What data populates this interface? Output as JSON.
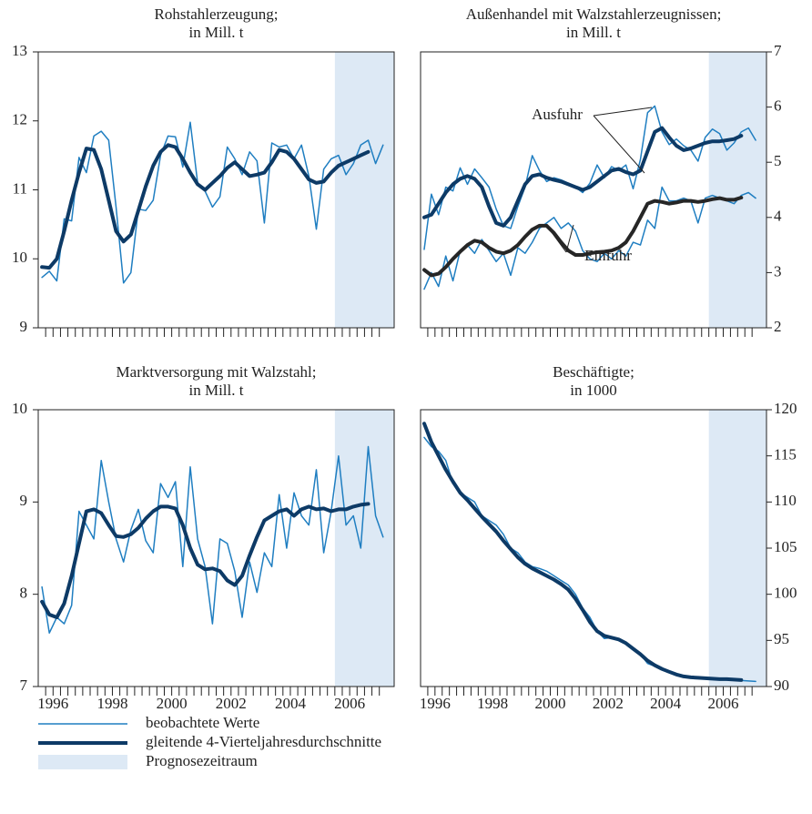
{
  "chart_data": [
    {
      "type": "line",
      "title": "Rohstahlerzeugung;",
      "subtitle": "in Mill. t",
      "xlim": [
        1995.5,
        2007.5
      ],
      "ylim": [
        9,
        13
      ],
      "yticks": [
        9,
        10,
        11,
        12,
        13
      ],
      "yaxis_side": "left",
      "forecast": [
        2005.5,
        2007.5
      ],
      "forecast_color": "#dde9f5",
      "x": [
        1995.625,
        1995.875,
        1996.125,
        1996.375,
        1996.625,
        1996.875,
        1997.125,
        1997.375,
        1997.625,
        1997.875,
        1998.125,
        1998.375,
        1998.625,
        1998.875,
        1999.125,
        1999.375,
        1999.625,
        1999.875,
        2000.125,
        2000.375,
        2000.625,
        2000.875,
        2001.125,
        2001.375,
        2001.625,
        2001.875,
        2002.125,
        2002.375,
        2002.625,
        2002.875,
        2003.125,
        2003.375,
        2003.625,
        2003.875,
        2004.125,
        2004.375,
        2004.625,
        2004.875,
        2005.125,
        2005.375,
        2005.625,
        2005.875,
        2006.125,
        2006.375,
        2006.625,
        2006.875,
        2007.125
      ],
      "series": [
        {
          "color": "#1f7ec1",
          "width": 1.5,
          "values": [
            9.73,
            9.82,
            9.68,
            10.58,
            10.55,
            11.47,
            11.25,
            11.78,
            11.85,
            11.72,
            10.75,
            9.65,
            9.8,
            10.72,
            10.7,
            10.85,
            11.5,
            11.78,
            11.77,
            11.33,
            11.98,
            11.1,
            10.98,
            10.75,
            10.9,
            11.62,
            11.45,
            11.22,
            11.55,
            11.42,
            10.52,
            11.68,
            11.62,
            11.65,
            11.45,
            11.65,
            11.2,
            10.43,
            11.3,
            11.45,
            11.5,
            11.22,
            11.38,
            11.65,
            11.72,
            11.38,
            11.65
          ]
        },
        {
          "color": "#0d3a66",
          "width": 4,
          "values": [
            9.88,
            9.87,
            10.0,
            10.4,
            10.85,
            11.25,
            11.6,
            11.58,
            11.3,
            10.85,
            10.4,
            10.25,
            10.35,
            10.7,
            11.05,
            11.35,
            11.55,
            11.65,
            11.62,
            11.45,
            11.25,
            11.08,
            11.0,
            11.1,
            11.2,
            11.32,
            11.4,
            11.3,
            11.2,
            11.22,
            11.25,
            11.4,
            11.58,
            11.55,
            11.45,
            11.3,
            11.15,
            11.1,
            11.12,
            11.25,
            11.35,
            11.4,
            11.45,
            11.5,
            11.55,
            null,
            null
          ]
        }
      ]
    },
    {
      "type": "line",
      "title": "Außenhandel mit Walzstahlerzeugnissen;",
      "subtitle": "in Mill. t",
      "xlim": [
        1995.5,
        2007.5
      ],
      "ylim": [
        2,
        7
      ],
      "yticks": [
        2,
        3,
        4,
        5,
        6,
        7
      ],
      "yaxis_side": "right",
      "forecast": [
        2005.5,
        2007.5
      ],
      "forecast_color": "#dde9f5",
      "annotations": [
        "Ausfuhr",
        "Einfuhr"
      ],
      "x": [
        1995.625,
        1995.875,
        1996.125,
        1996.375,
        1996.625,
        1996.875,
        1997.125,
        1997.375,
        1997.625,
        1997.875,
        1998.125,
        1998.375,
        1998.625,
        1998.875,
        1999.125,
        1999.375,
        1999.625,
        1999.875,
        2000.125,
        2000.375,
        2000.625,
        2000.875,
        2001.125,
        2001.375,
        2001.625,
        2001.875,
        2002.125,
        2002.375,
        2002.625,
        2002.875,
        2003.125,
        2003.375,
        2003.625,
        2003.875,
        2004.125,
        2004.375,
        2004.625,
        2004.875,
        2005.125,
        2005.375,
        2005.625,
        2005.875,
        2006.125,
        2006.375,
        2006.625,
        2006.875,
        2007.125
      ],
      "series": [
        {
          "color": "#1f7ec1",
          "width": 1.5,
          "values": [
            3.42,
            4.42,
            4.05,
            4.55,
            4.48,
            4.9,
            4.6,
            4.88,
            4.72,
            4.55,
            4.15,
            3.85,
            3.8,
            4.2,
            4.55,
            5.12,
            4.85,
            4.65,
            4.72,
            4.68,
            4.62,
            4.55,
            4.45,
            4.62,
            4.95,
            4.72,
            4.92,
            4.85,
            4.95,
            4.52,
            5.05,
            5.9,
            6.02,
            5.55,
            5.32,
            5.42,
            5.3,
            5.22,
            5.02,
            5.45,
            5.6,
            5.52,
            5.22,
            5.35,
            5.55,
            5.62,
            5.4
          ]
        },
        {
          "color": "#0d3a66",
          "width": 4,
          "values": [
            4.0,
            4.05,
            4.25,
            4.45,
            4.6,
            4.7,
            4.75,
            4.7,
            4.55,
            4.2,
            3.9,
            3.85,
            4.0,
            4.3,
            4.6,
            4.75,
            4.78,
            4.72,
            4.68,
            4.65,
            4.6,
            4.55,
            4.5,
            4.55,
            4.65,
            4.75,
            4.85,
            4.88,
            4.82,
            4.78,
            4.85,
            5.2,
            5.55,
            5.62,
            5.45,
            5.3,
            5.22,
            5.25,
            5.3,
            5.35,
            5.38,
            5.38,
            5.4,
            5.42,
            5.48,
            null,
            null
          ]
        },
        {
          "color": "#1f7ec1",
          "width": 1.5,
          "values": [
            2.7,
            3.0,
            2.75,
            3.3,
            2.85,
            3.4,
            3.5,
            3.35,
            3.6,
            3.4,
            3.2,
            3.35,
            2.95,
            3.45,
            3.35,
            3.55,
            3.8,
            3.9,
            4.0,
            3.8,
            3.9,
            3.75,
            3.4,
            3.25,
            3.2,
            3.35,
            3.25,
            3.4,
            3.3,
            3.55,
            3.5,
            3.95,
            3.8,
            4.55,
            4.3,
            4.3,
            4.35,
            4.3,
            3.9,
            4.35,
            4.4,
            4.35,
            4.3,
            4.25,
            4.4,
            4.45,
            4.35
          ]
        },
        {
          "color": "#262626",
          "width": 4,
          "values": [
            3.05,
            2.95,
            2.98,
            3.1,
            3.25,
            3.38,
            3.5,
            3.58,
            3.55,
            3.45,
            3.38,
            3.35,
            3.4,
            3.5,
            3.65,
            3.78,
            3.85,
            3.85,
            3.72,
            3.55,
            3.4,
            3.32,
            3.32,
            3.35,
            3.37,
            3.38,
            3.4,
            3.45,
            3.55,
            3.75,
            4.0,
            4.25,
            4.3,
            4.28,
            4.25,
            4.27,
            4.3,
            4.3,
            4.28,
            4.3,
            4.33,
            4.35,
            4.32,
            4.32,
            4.36,
            null,
            null
          ]
        }
      ]
    },
    {
      "type": "line",
      "title": "Marktversorgung mit Walzstahl;",
      "subtitle": "in Mill. t",
      "xlim": [
        1995.5,
        2007.5
      ],
      "ylim": [
        7,
        10
      ],
      "yticks": [
        7,
        8,
        9,
        10
      ],
      "xticks": [
        1996,
        1998,
        2000,
        2002,
        2004,
        2006
      ],
      "yaxis_side": "left",
      "forecast": [
        2005.5,
        2007.5
      ],
      "forecast_color": "#dde9f5",
      "x": [
        1995.625,
        1995.875,
        1996.125,
        1996.375,
        1996.625,
        1996.875,
        1997.125,
        1997.375,
        1997.625,
        1997.875,
        1998.125,
        1998.375,
        1998.625,
        1998.875,
        1999.125,
        1999.375,
        1999.625,
        1999.875,
        2000.125,
        2000.375,
        2000.625,
        2000.875,
        2001.125,
        2001.375,
        2001.625,
        2001.875,
        2002.125,
        2002.375,
        2002.625,
        2002.875,
        2003.125,
        2003.375,
        2003.625,
        2003.875,
        2004.125,
        2004.375,
        2004.625,
        2004.875,
        2005.125,
        2005.375,
        2005.625,
        2005.875,
        2006.125,
        2006.375,
        2006.625,
        2006.875,
        2007.125
      ],
      "series": [
        {
          "color": "#1f7ec1",
          "width": 1.5,
          "values": [
            8.08,
            7.58,
            7.75,
            7.68,
            7.88,
            8.9,
            8.75,
            8.6,
            9.45,
            9.0,
            8.6,
            8.35,
            8.7,
            8.92,
            8.58,
            8.45,
            9.2,
            9.05,
            9.22,
            8.3,
            9.38,
            8.6,
            8.3,
            7.68,
            8.6,
            8.55,
            8.25,
            7.75,
            8.35,
            8.02,
            8.45,
            8.3,
            9.08,
            8.5,
            9.1,
            8.85,
            8.75,
            9.35,
            8.45,
            8.9,
            9.5,
            8.75,
            8.85,
            8.5,
            9.6,
            8.85,
            8.62
          ]
        },
        {
          "color": "#0d3a66",
          "width": 4,
          "values": [
            7.92,
            7.78,
            7.75,
            7.9,
            8.2,
            8.55,
            8.9,
            8.92,
            8.88,
            8.75,
            8.63,
            8.62,
            8.65,
            8.72,
            8.82,
            8.9,
            8.95,
            8.95,
            8.93,
            8.75,
            8.5,
            8.32,
            8.27,
            8.28,
            8.25,
            8.15,
            8.1,
            8.2,
            8.42,
            8.62,
            8.8,
            8.85,
            8.9,
            8.92,
            8.85,
            8.92,
            8.95,
            8.92,
            8.93,
            8.9,
            8.92,
            8.92,
            8.95,
            8.97,
            8.98,
            null,
            null
          ]
        }
      ]
    },
    {
      "type": "line",
      "title": "Beschäftigte;",
      "subtitle": "in 1000",
      "xlim": [
        1995.5,
        2007.5
      ],
      "ylim": [
        90,
        120
      ],
      "yticks": [
        90,
        95,
        100,
        105,
        110,
        115,
        120
      ],
      "xticks": [
        1996,
        1998,
        2000,
        2002,
        2004,
        2006
      ],
      "yaxis_side": "right",
      "forecast": [
        2005.5,
        2007.5
      ],
      "forecast_color": "#dde9f5",
      "x": [
        1995.625,
        1995.875,
        1996.125,
        1996.375,
        1996.625,
        1996.875,
        1997.125,
        1997.375,
        1997.625,
        1997.875,
        1998.125,
        1998.375,
        1998.625,
        1998.875,
        1999.125,
        1999.375,
        1999.625,
        1999.875,
        2000.125,
        2000.375,
        2000.625,
        2000.875,
        2001.125,
        2001.375,
        2001.625,
        2001.875,
        2002.125,
        2002.375,
        2002.625,
        2002.875,
        2003.125,
        2003.375,
        2003.625,
        2003.875,
        2004.125,
        2004.375,
        2004.625,
        2004.875,
        2005.125,
        2005.375,
        2005.625,
        2005.875,
        2006.125,
        2006.375,
        2006.625,
        2006.875,
        2007.125
      ],
      "series": [
        {
          "color": "#1f7ec1",
          "width": 1.5,
          "values": [
            117,
            116,
            115.5,
            114.5,
            112,
            111,
            110.5,
            110,
            108.5,
            108,
            107.5,
            106.5,
            105,
            104.5,
            103.5,
            103,
            102.8,
            102.5,
            102,
            101.5,
            101,
            100,
            98.5,
            97.5,
            96,
            95.2,
            95.3,
            95.2,
            94.8,
            94,
            93.5,
            92.5,
            92.2,
            91.8,
            91.5,
            91.2,
            91.1,
            91.0,
            90.9,
            90.85,
            90.8,
            90.75,
            90.7,
            90.7,
            90.65,
            90.6,
            90.55
          ]
        },
        {
          "color": "#0d3a66",
          "width": 4,
          "values": [
            118.5,
            116.5,
            115,
            113.5,
            112.2,
            111,
            110.2,
            109.3,
            108.4,
            107.6,
            106.8,
            105.8,
            104.9,
            104,
            103.3,
            102.8,
            102.4,
            102,
            101.6,
            101.1,
            100.5,
            99.5,
            98.3,
            97,
            96,
            95.5,
            95.3,
            95.1,
            94.7,
            94.1,
            93.5,
            92.8,
            92.3,
            91.9,
            91.6,
            91.3,
            91.1,
            91.0,
            90.95,
            90.9,
            90.85,
            90.8,
            90.8,
            90.75,
            90.7,
            null,
            null
          ]
        }
      ]
    }
  ],
  "legend": {
    "entries": [
      "beobachtete Werte",
      "gleitende 4-Vierteljahresdurchschnitte",
      "Prognosezeitraum"
    ],
    "colors": [
      "#1f7ec1",
      "#0d3a66",
      "#dde9f5"
    ]
  }
}
